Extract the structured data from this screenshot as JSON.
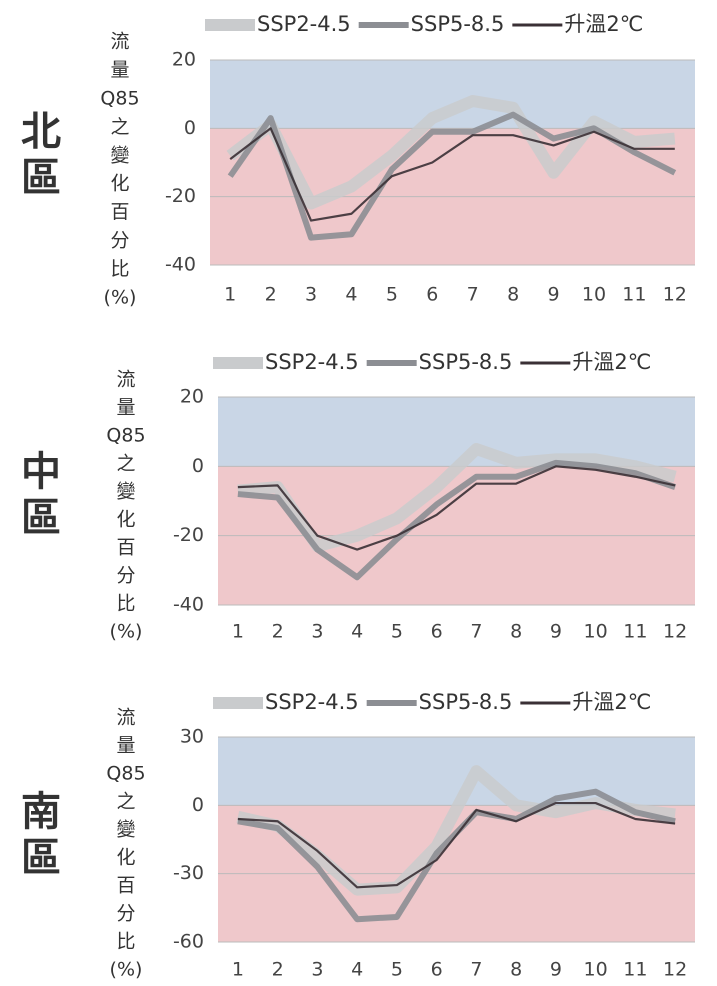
{
  "chart_data": [
    {
      "type": "line",
      "region": "北區",
      "ylabel": [
        "流",
        "量",
        "Q85",
        "之",
        "變",
        "化",
        "百",
        "分",
        "比",
        "(%)"
      ],
      "categories": [
        "1",
        "2",
        "3",
        "4",
        "5",
        "6",
        "7",
        "8",
        "9",
        "10",
        "11",
        "12"
      ],
      "series": [
        {
          "name": "SSP2-4.5",
          "color": "#c9cbcd",
          "values": [
            -8,
            1,
            -22,
            -17,
            -8,
            3,
            8,
            6,
            -13,
            2,
            -4,
            -3
          ]
        },
        {
          "name": "SSP5-8.5",
          "color": "#8c8e93",
          "values": [
            -14,
            3,
            -32,
            -31,
            -12,
            -1,
            -1,
            4,
            -3,
            0,
            -7,
            -13
          ]
        },
        {
          "name": "升溫2℃",
          "color": "#3a3035",
          "values": [
            -9,
            0,
            -27,
            -25,
            -14,
            -10,
            -2,
            -2,
            -5,
            -1,
            -6,
            -6
          ]
        }
      ],
      "ylim": [
        -40,
        20
      ],
      "yticks": [
        -40,
        -20,
        0,
        20
      ],
      "positive_color": "#c9d6e6",
      "negative_color": "#efc8cb",
      "grid": true,
      "legend": "top"
    },
    {
      "type": "line",
      "region": "中區",
      "ylabel": [
        "流",
        "量",
        "Q85",
        "之",
        "變",
        "化",
        "百",
        "分",
        "比",
        "(%)"
      ],
      "categories": [
        "1",
        "2",
        "3",
        "4",
        "5",
        "6",
        "7",
        "8",
        "9",
        "10",
        "11",
        "12"
      ],
      "series": [
        {
          "name": "SSP2-4.5",
          "color": "#c9cbcd",
          "values": [
            -7,
            -6,
            -23,
            -20,
            -15,
            -6,
            5,
            1,
            2,
            2,
            0,
            -3
          ]
        },
        {
          "name": "SSP5-8.5",
          "color": "#8c8e93",
          "values": [
            -8,
            -9,
            -24,
            -32,
            -21,
            -11,
            -3,
            -3,
            1,
            0,
            -2,
            -6
          ]
        },
        {
          "name": "升溫2℃",
          "color": "#3a3035",
          "values": [
            -6,
            -5.5,
            -20,
            -24,
            -20,
            -14,
            -5,
            -5,
            0,
            -1,
            -3,
            -5.5
          ]
        }
      ],
      "ylim": [
        -40,
        20
      ],
      "yticks": [
        -40,
        -20,
        0,
        20
      ],
      "positive_color": "#c9d6e6",
      "negative_color": "#efc8cb",
      "grid": true,
      "legend": "top"
    },
    {
      "type": "line",
      "region": "南區",
      "ylabel": [
        "流",
        "量",
        "Q85",
        "之",
        "變",
        "化",
        "百",
        "分",
        "比",
        "(%)"
      ],
      "categories": [
        "1",
        "2",
        "3",
        "4",
        "5",
        "6",
        "7",
        "8",
        "9",
        "10",
        "11",
        "12"
      ],
      "series": [
        {
          "name": "SSP2-4.5",
          "color": "#c9cbcd",
          "values": [
            -5,
            -9,
            -22,
            -37,
            -36,
            -18,
            15,
            0,
            -3,
            1,
            -2,
            -4
          ]
        },
        {
          "name": "SSP5-8.5",
          "color": "#8c8e93",
          "values": [
            -7,
            -10,
            -27,
            -50,
            -49,
            -21,
            -3,
            -6,
            3,
            6,
            -3,
            -7
          ]
        },
        {
          "name": "升溫2℃",
          "color": "#3a3035",
          "values": [
            -6,
            -7,
            -20,
            -36,
            -35,
            -24,
            -2,
            -7,
            1,
            1,
            -6,
            -8
          ]
        }
      ],
      "ylim": [
        -60,
        30
      ],
      "yticks": [
        -60,
        -30,
        0,
        30
      ],
      "positive_color": "#c9d6e6",
      "negative_color": "#efc8cb",
      "grid": true,
      "legend": "top"
    }
  ]
}
